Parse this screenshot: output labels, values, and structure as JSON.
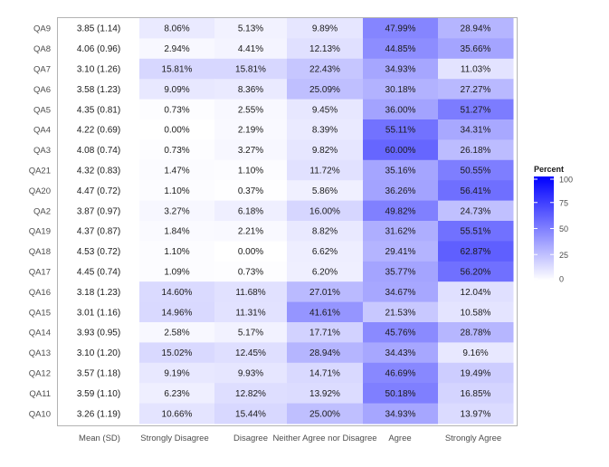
{
  "chart_data": {
    "type": "heatmap",
    "rows": [
      "QA9",
      "QA8",
      "QA7",
      "QA6",
      "QA5",
      "QA4",
      "QA3",
      "QA21",
      "QA20",
      "QA2",
      "QA19",
      "QA18",
      "QA17",
      "QA16",
      "QA15",
      "QA14",
      "QA13",
      "QA12",
      "QA11",
      "QA10"
    ],
    "columns": [
      "Mean (SD)",
      "Strongly Disagree",
      "Disagree",
      "Neither Agree nor Disagree",
      "Agree",
      "Strongly Agree"
    ],
    "mean_sd": [
      "3.85 (1.14)",
      "4.06 (0.96)",
      "3.10 (1.26)",
      "3.58 (1.23)",
      "4.35 (0.81)",
      "4.22 (0.69)",
      "4.08 (0.74)",
      "4.32 (0.83)",
      "4.47 (0.72)",
      "3.87 (0.97)",
      "4.37 (0.87)",
      "4.53 (0.72)",
      "4.45 (0.74)",
      "3.18 (1.23)",
      "3.01 (1.16)",
      "3.93 (0.95)",
      "3.10 (1.20)",
      "3.57 (1.18)",
      "3.59 (1.10)",
      "3.26 (1.19)"
    ],
    "values": [
      [
        8.06,
        5.13,
        9.89,
        47.99,
        28.94
      ],
      [
        2.94,
        4.41,
        12.13,
        44.85,
        35.66
      ],
      [
        15.81,
        15.81,
        22.43,
        34.93,
        11.03
      ],
      [
        9.09,
        8.36,
        25.09,
        30.18,
        27.27
      ],
      [
        0.73,
        2.55,
        9.45,
        36.0,
        51.27
      ],
      [
        0.0,
        2.19,
        8.39,
        55.11,
        34.31
      ],
      [
        0.73,
        3.27,
        9.82,
        60.0,
        26.18
      ],
      [
        1.47,
        1.1,
        11.72,
        35.16,
        50.55
      ],
      [
        1.1,
        0.37,
        5.86,
        36.26,
        56.41
      ],
      [
        3.27,
        6.18,
        16.0,
        49.82,
        24.73
      ],
      [
        1.84,
        2.21,
        8.82,
        31.62,
        55.51
      ],
      [
        1.1,
        0.0,
        6.62,
        29.41,
        62.87
      ],
      [
        1.09,
        0.73,
        6.2,
        35.77,
        56.2
      ],
      [
        14.6,
        11.68,
        27.01,
        34.67,
        12.04
      ],
      [
        14.96,
        11.31,
        41.61,
        21.53,
        10.58
      ],
      [
        2.58,
        5.17,
        17.71,
        45.76,
        28.78
      ],
      [
        15.02,
        12.45,
        28.94,
        34.43,
        9.16
      ],
      [
        9.19,
        9.93,
        14.71,
        46.69,
        19.49
      ],
      [
        6.23,
        12.82,
        13.92,
        50.18,
        16.85
      ],
      [
        10.66,
        15.44,
        25.0,
        34.93,
        13.97
      ]
    ],
    "legend": {
      "title": "Percent",
      "ticks": [
        0,
        25,
        50,
        75,
        100
      ],
      "range": [
        0,
        100
      ],
      "low_color": "#ffffff",
      "high_color": "#0000ff"
    },
    "value_suffix": "%",
    "mean_column_color": "#ffffff",
    "panel_border_color": "#b3b3b3",
    "text_color": "#1a1a1a",
    "axis_text_color": "#4d4d4d"
  }
}
